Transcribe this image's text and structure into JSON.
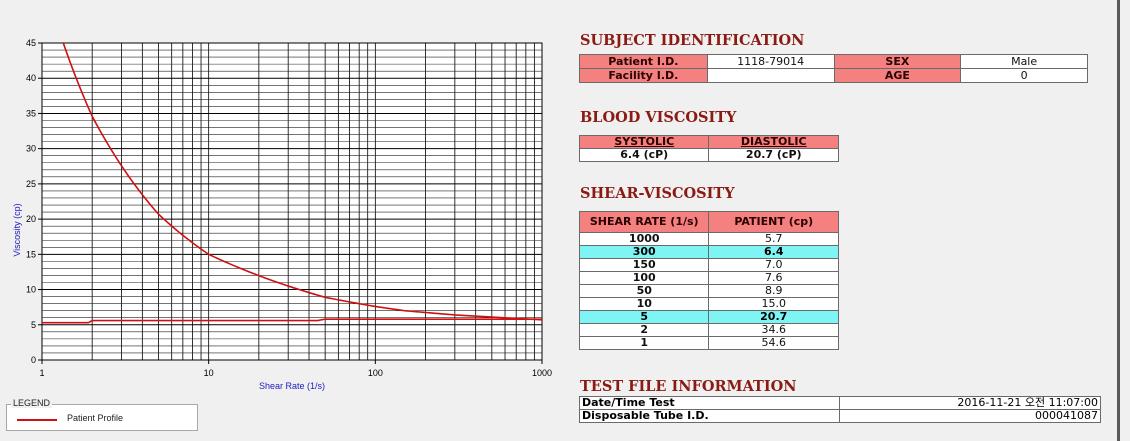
{
  "chart_data": {
    "type": "line",
    "x_scale": "log",
    "xlim": [
      1,
      1000
    ],
    "ylim": [
      0,
      45
    ],
    "x_ticks": [
      "1",
      "10",
      "100",
      "1000"
    ],
    "y_ticks": [
      "0",
      "5",
      "10",
      "15",
      "20",
      "25",
      "30",
      "35",
      "40",
      "45"
    ],
    "xlabel": "Shear Rate (1/s)",
    "ylabel": "Viscosity (cp)",
    "grid": true,
    "series": [
      {
        "name": "Patient Profile",
        "color": "#d01010",
        "x": [
          1,
          2,
          5,
          10,
          50,
          100,
          150,
          300,
          1000
        ],
        "y": [
          54.6,
          34.6,
          20.7,
          15.0,
          8.9,
          7.6,
          7.0,
          6.4,
          5.7
        ]
      },
      {
        "name": "",
        "color": "#d01010",
        "x": [
          1,
          1.9,
          2,
          45,
          50,
          1000
        ],
        "y": [
          5.3,
          5.3,
          5.6,
          5.6,
          5.8,
          5.8
        ]
      }
    ]
  },
  "legend": {
    "title": "LEGEND",
    "items": [
      "Patient Profile"
    ]
  },
  "subject": {
    "title": "SUBJECT IDENTIFICATION",
    "patient_id_label": "Patient I.D.",
    "patient_id": "1118-79014",
    "sex_label": "SEX",
    "sex": "Male",
    "facility_label": "Facility I.D.",
    "facility": "",
    "age_label": "AGE",
    "age": "0"
  },
  "blood": {
    "title": "BLOOD VISCOSITY",
    "systolic_label": "SYSTOLIC",
    "diastolic_label": "DIASTOLIC",
    "systolic": "6.4 (cP)",
    "diastolic": "20.7 (cP)"
  },
  "shear": {
    "title": "SHEAR-VISCOSITY",
    "col_rate": "SHEAR RATE (1/s)",
    "col_patient": "PATIENT (cp)",
    "rows": [
      {
        "rate": "1000",
        "value": "5.7",
        "hl": false
      },
      {
        "rate": "300",
        "value": "6.4",
        "hl": true
      },
      {
        "rate": "150",
        "value": "7.0",
        "hl": false
      },
      {
        "rate": "100",
        "value": "7.6",
        "hl": false
      },
      {
        "rate": "50",
        "value": "8.9",
        "hl": false
      },
      {
        "rate": "10",
        "value": "15.0",
        "hl": false
      },
      {
        "rate": "5",
        "value": "20.7",
        "hl": true
      },
      {
        "rate": "2",
        "value": "34.6",
        "hl": false
      },
      {
        "rate": "1",
        "value": "54.6",
        "hl": false
      }
    ]
  },
  "testfile": {
    "title": "TEST FILE INFORMATION",
    "date_label": "Date/Time Test",
    "date_value": "2016-11-21  오전 11:07:00",
    "tube_label": "Disposable Tube I.D.",
    "tube_value": "000041087"
  }
}
